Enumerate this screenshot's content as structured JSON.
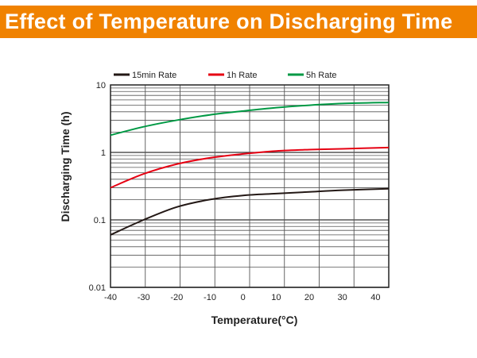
{
  "header": {
    "title": "Effect of Temperature on Discharging Time",
    "color": "#f08200"
  },
  "chart_data": {
    "type": "line",
    "xlabel": "Temperature(°C)",
    "ylabel": "Discharging Time (h)",
    "xlim": [
      -40,
      44
    ],
    "ylim": [
      0.01,
      10
    ],
    "yscale": "log",
    "grid": true,
    "legend": "top",
    "xticks": [
      -40,
      -30,
      -20,
      -10,
      0,
      10,
      20,
      30,
      40
    ],
    "yticks": [
      {
        "v": 10,
        "label": "10"
      },
      {
        "v": 1,
        "label": "1"
      },
      {
        "v": 0.1,
        "label": "0.1"
      },
      {
        "v": 0.01,
        "label": "0.01"
      }
    ],
    "x": [
      -40,
      -30,
      -20,
      -10,
      0,
      10,
      20,
      30,
      44
    ],
    "series": [
      {
        "name": "15min Rate",
        "color": "#231815",
        "values": [
          0.06,
          0.1,
          0.155,
          0.2,
          0.23,
          0.245,
          0.26,
          0.275,
          0.29
        ]
      },
      {
        "name": "1h Rate",
        "color": "#e60012",
        "values": [
          0.3,
          0.48,
          0.67,
          0.83,
          0.95,
          1.05,
          1.1,
          1.13,
          1.18
        ]
      },
      {
        "name": "5h Rate",
        "color": "#009944",
        "values": [
          1.8,
          2.4,
          3.0,
          3.6,
          4.1,
          4.6,
          5.0,
          5.3,
          5.5
        ]
      }
    ]
  }
}
